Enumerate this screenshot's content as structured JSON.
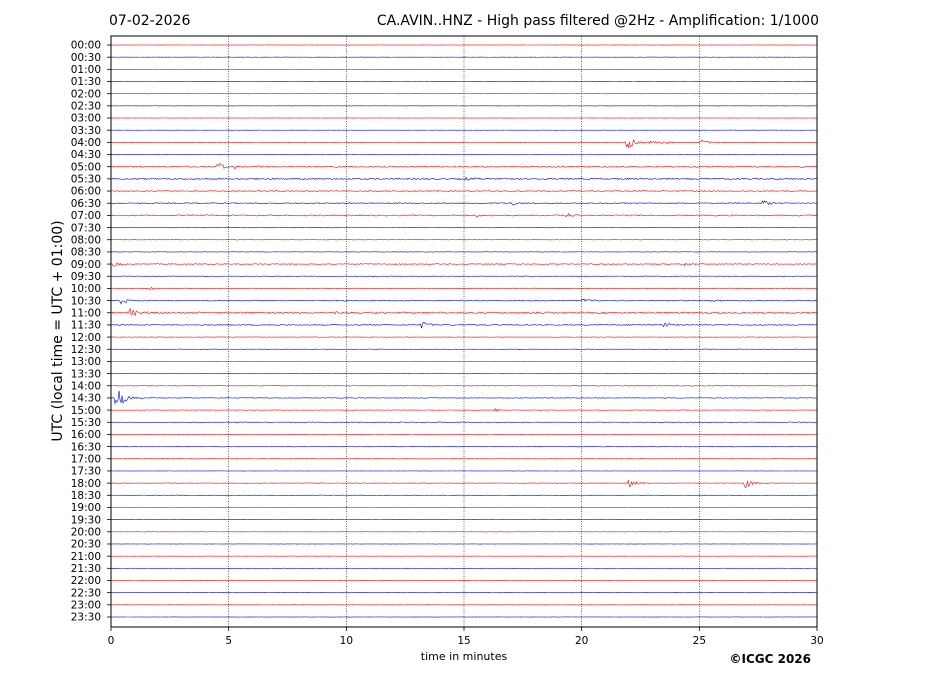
{
  "header": {
    "date": "07-02-2026",
    "title": "CA.AVIN..HNZ - High pass filtered @2Hz - Amplification: 1/1000"
  },
  "footer": {
    "copyright": "©ICGC 2026"
  },
  "chart_data": {
    "type": "line",
    "xlabel": "time in minutes",
    "ylabel": "UTC (local time = UTC + 01:00)",
    "xlim": [
      0,
      30
    ],
    "xticks": [
      "0",
      "5",
      "10",
      "15",
      "20",
      "25",
      "30"
    ],
    "vertical_gridlines_at": [
      5,
      10,
      15,
      20,
      25
    ],
    "row_labels": [
      "00:00",
      "00:30",
      "01:00",
      "01:30",
      "02:00",
      "02:30",
      "03:00",
      "03:30",
      "04:00",
      "04:30",
      "05:00",
      "05:30",
      "06:00",
      "06:30",
      "07:00",
      "07:30",
      "08:00",
      "08:30",
      "09:00",
      "09:30",
      "10:00",
      "10:30",
      "11:00",
      "11:30",
      "12:00",
      "12:30",
      "13:00",
      "13:30",
      "14:00",
      "14:30",
      "15:00",
      "15:30",
      "16:00",
      "16:30",
      "17:00",
      "17:30",
      "18:00",
      "18:30",
      "19:00",
      "19:30",
      "20:00",
      "20:30",
      "21:00",
      "21:30",
      "22:00",
      "22:30",
      "23:00",
      "23:30"
    ],
    "trace_colors": [
      "#ff0000",
      "#0000ff"
    ],
    "trace_color_pattern": "rows alternate red (even index) and blue (odd index)",
    "noise_level": [
      0.1,
      0.1,
      0.1,
      0.1,
      0.1,
      0.1,
      0.1,
      0.1,
      0.15,
      0.15,
      0.6,
      0.7,
      0.5,
      0.5,
      0.6,
      0.3,
      0.2,
      0.2,
      0.4,
      0.2,
      0.3,
      0.5,
      0.8,
      0.5,
      0.2,
      0.2,
      0.2,
      0.2,
      0.3,
      0.3,
      0.2,
      0.3,
      0.2,
      0.3,
      0.2,
      0.1,
      0.2,
      0.2,
      0.1,
      0.1,
      0.1,
      0.1,
      0.1,
      0.1,
      0.1,
      0.1,
      0.1,
      0.1
    ],
    "events": [
      {
        "row": "04:00",
        "minute": 21.9,
        "amplitude": 8
      },
      {
        "row": "04:00",
        "minute": 22.9,
        "amplitude": 2
      },
      {
        "row": "04:00",
        "minute": 23.4,
        "amplitude": 3
      },
      {
        "row": "04:00",
        "minute": 25.1,
        "amplitude": 3
      },
      {
        "row": "05:00",
        "minute": 4.5,
        "amplitude": 6
      },
      {
        "row": "05:00",
        "minute": 5.2,
        "amplitude": 2
      },
      {
        "row": "05:00",
        "minute": 6.1,
        "amplitude": 2
      },
      {
        "row": "05:30",
        "minute": 15.0,
        "amplitude": 2
      },
      {
        "row": "06:30",
        "minute": 17.0,
        "amplitude": 3
      },
      {
        "row": "06:30",
        "minute": 27.7,
        "amplitude": 4
      },
      {
        "row": "07:00",
        "minute": 19.3,
        "amplitude": 3
      },
      {
        "row": "07:00",
        "minute": 15.5,
        "amplitude": 2
      },
      {
        "row": "09:00",
        "minute": 0.1,
        "amplitude": 3
      },
      {
        "row": "09:00",
        "minute": 24.4,
        "amplitude": 3
      },
      {
        "row": "10:00",
        "minute": 1.6,
        "amplitude": 2
      },
      {
        "row": "10:30",
        "minute": 0.4,
        "amplitude": 4
      },
      {
        "row": "10:30",
        "minute": 20.0,
        "amplitude": 2
      },
      {
        "row": "10:30",
        "minute": 25.5,
        "amplitude": 2
      },
      {
        "row": "11:00",
        "minute": 0.8,
        "amplitude": 6
      },
      {
        "row": "11:00",
        "minute": 9.5,
        "amplitude": 2
      },
      {
        "row": "11:30",
        "minute": 13.2,
        "amplitude": 4
      },
      {
        "row": "11:30",
        "minute": 23.5,
        "amplitude": 3
      },
      {
        "row": "14:00",
        "minute": 30.0,
        "amplitude": 4
      },
      {
        "row": "14:30",
        "minute": 0.2,
        "amplitude": 18
      },
      {
        "row": "15:00",
        "minute": 16.3,
        "amplitude": 2
      },
      {
        "row": "18:00",
        "minute": 22.0,
        "amplitude": 4
      },
      {
        "row": "18:00",
        "minute": 26.9,
        "amplitude": 6
      }
    ]
  }
}
